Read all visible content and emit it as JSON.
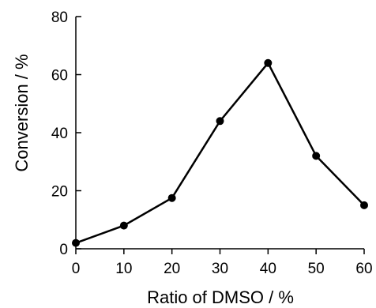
{
  "chart_data": {
    "type": "line",
    "title": "",
    "xlabel": "Ratio of DMSO / %",
    "ylabel": "Conversion / %",
    "xlim": [
      0,
      60
    ],
    "ylim": [
      0,
      80
    ],
    "xticks": [
      0,
      10,
      20,
      30,
      40,
      50,
      60
    ],
    "yticks": [
      0,
      20,
      40,
      60,
      80
    ],
    "grid": false,
    "legend": "none",
    "series": [
      {
        "x": [
          0,
          10,
          20,
          30,
          40,
          50,
          60
        ],
        "y": [
          2,
          8,
          17.5,
          44,
          64,
          32,
          15
        ],
        "color": "#000000",
        "marker": "circle"
      }
    ]
  }
}
